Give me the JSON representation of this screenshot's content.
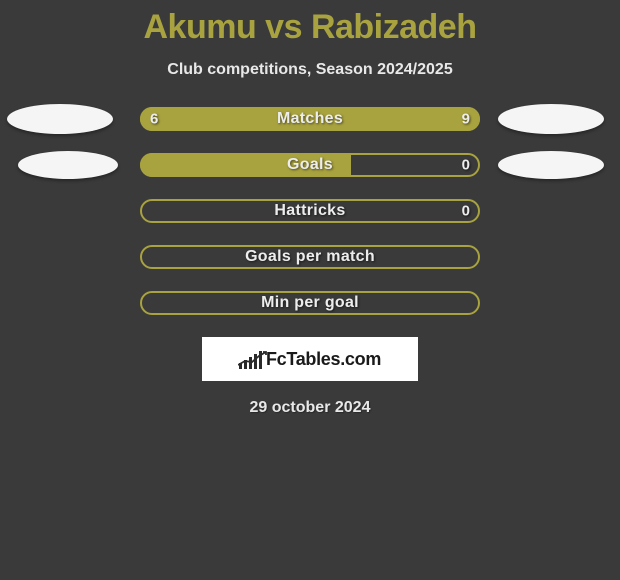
{
  "title": "Akumu vs Rabizadeh",
  "subtitle": "Club competitions, Season 2024/2025",
  "colors": {
    "accent": "#a8a23f",
    "background": "#3a3a3a",
    "text_light": "#e8e8e8",
    "avatar_bg": "#f5f5f5",
    "logo_bg": "#ffffff"
  },
  "stats": [
    {
      "label": "Matches",
      "left_value": "6",
      "right_value": "9",
      "left_fill_pct": 40,
      "right_fill_pct": 60,
      "show_left_avatar": true,
      "show_right_avatar": true,
      "avatar_left_class": "avatar-left",
      "avatar_right_class": "avatar-right"
    },
    {
      "label": "Goals",
      "left_value": "",
      "right_value": "0",
      "left_fill_pct": 60,
      "right_fill_pct": 0,
      "show_left_avatar": true,
      "show_right_avatar": true,
      "avatar_left_class": "avatar-row2-left",
      "avatar_right_class": "avatar-row2-right"
    },
    {
      "label": "Hattricks",
      "left_value": "",
      "right_value": "0",
      "left_fill_pct": 0,
      "right_fill_pct": 0,
      "show_left_avatar": false,
      "show_right_avatar": false
    },
    {
      "label": "Goals per match",
      "left_value": "",
      "right_value": "",
      "left_fill_pct": 0,
      "right_fill_pct": 0,
      "show_left_avatar": false,
      "show_right_avatar": false
    },
    {
      "label": "Min per goal",
      "left_value": "",
      "right_value": "",
      "left_fill_pct": 0,
      "right_fill_pct": 0,
      "show_left_avatar": false,
      "show_right_avatar": false
    }
  ],
  "logo_text": "FcTables.com",
  "date": "29 october 2024",
  "logo_bars_heights": [
    6,
    9,
    12,
    15,
    18
  ]
}
